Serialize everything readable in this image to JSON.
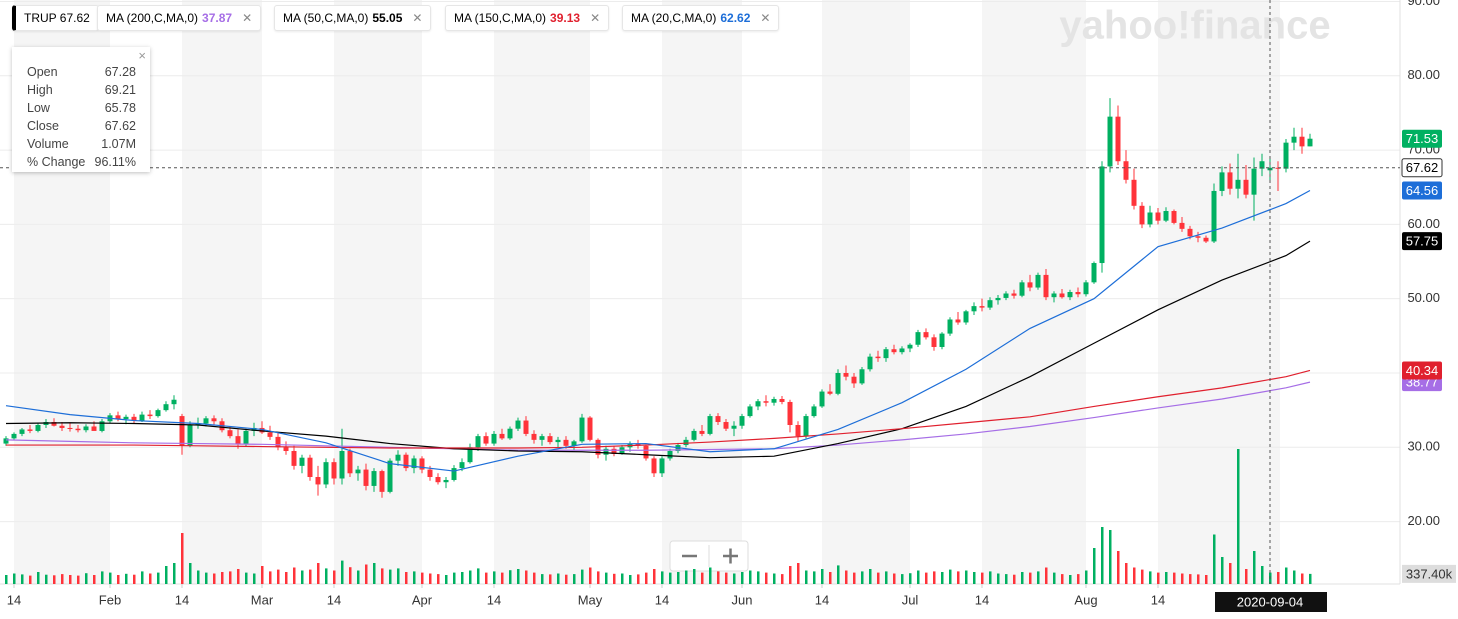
{
  "chart_data": {
    "type": "candlestick",
    "watermark": "yahoo!finance",
    "symbol": "TRUP",
    "symbol_value": 67.62,
    "up_color": "#00b061",
    "down_color": "#ff333a",
    "tooltip": [
      {
        "label": "Open",
        "value": "67.28"
      },
      {
        "label": "High",
        "value": "69.21"
      },
      {
        "label": "Low",
        "value": "65.78"
      },
      {
        "label": "Close",
        "value": "67.62"
      },
      {
        "label": "Volume",
        "value": "1.07M"
      },
      {
        "label": "% Change",
        "value": "96.11%"
      }
    ],
    "ylim": [
      11.6,
      90.2
    ],
    "yticks": [
      {
        "value": 20,
        "label": "20.00"
      },
      {
        "value": 30,
        "label": "30.00"
      },
      {
        "value": 40,
        "label": "40.00"
      },
      {
        "value": 50,
        "label": "50.00"
      },
      {
        "value": 60,
        "label": "60.00"
      },
      {
        "value": 70,
        "label": "70.00"
      },
      {
        "value": 80,
        "label": "80.00"
      },
      {
        "value": 90,
        "label": "90.00"
      }
    ],
    "xticks": [
      {
        "value": 1,
        "label": "14"
      },
      {
        "value": 13,
        "label": "Feb"
      },
      {
        "value": 22,
        "label": "14"
      },
      {
        "value": 32,
        "label": "Mar"
      },
      {
        "value": 41,
        "label": "14"
      },
      {
        "value": 52,
        "label": "Apr"
      },
      {
        "value": 61,
        "label": "14"
      },
      {
        "value": 73,
        "label": "May"
      },
      {
        "value": 82,
        "label": "14"
      },
      {
        "value": 92,
        "label": "Jun"
      },
      {
        "value": 102,
        "label": "14"
      },
      {
        "value": 113,
        "label": "Jul"
      },
      {
        "value": 122,
        "label": "14"
      },
      {
        "value": 135,
        "label": "Aug"
      },
      {
        "value": 144,
        "label": "14"
      }
    ],
    "crosshair": {
      "value": 158,
      "label": "2020-09-04"
    },
    "grid": true,
    "candles": [
      [
        30.5,
        31.5,
        30.2,
        31.2
      ],
      [
        31.2,
        32,
        31,
        31.8
      ],
      [
        31.8,
        32.6,
        31.5,
        32.4
      ],
      [
        32.4,
        33,
        31.9,
        32.2
      ],
      [
        32.2,
        33.2,
        32,
        33
      ],
      [
        33,
        33.8,
        32.6,
        33.4
      ],
      [
        33.4,
        33.9,
        32.8,
        32.9
      ],
      [
        32.9,
        33.4,
        32.2,
        32.6
      ],
      [
        32.6,
        33.2,
        32.1,
        32.5
      ],
      [
        32.5,
        33,
        32,
        32.3
      ],
      [
        32.3,
        33.1,
        32,
        32.8
      ],
      [
        32.8,
        33.5,
        32.5,
        32.2
      ],
      [
        32.2,
        33.8,
        32,
        33.5
      ],
      [
        33.5,
        34.6,
        33.2,
        34.3
      ],
      [
        34.3,
        34.8,
        33.5,
        33.8
      ],
      [
        33.8,
        34.4,
        33.1,
        34.1
      ],
      [
        34.1,
        34.5,
        33.2,
        33.6
      ],
      [
        33.6,
        34.8,
        33.4,
        34.4
      ],
      [
        34.4,
        35,
        33.8,
        34.2
      ],
      [
        34.2,
        35.2,
        34,
        35
      ],
      [
        35,
        36.2,
        34.8,
        35.8
      ],
      [
        35.8,
        37,
        35.1,
        36.4
      ],
      [
        34.2,
        34.5,
        29,
        30.2
      ],
      [
        30.2,
        33.5,
        30,
        33
      ],
      [
        33,
        34,
        32.5,
        33.2
      ],
      [
        33.2,
        34.2,
        32.8,
        33.9
      ],
      [
        33.9,
        34.3,
        33,
        33.5
      ],
      [
        33.5,
        33.9,
        32,
        32.3
      ],
      [
        32.3,
        32.8,
        31.2,
        31.5
      ],
      [
        31.5,
        32.4,
        29.8,
        30.5
      ],
      [
        30.5,
        32.5,
        30.1,
        32.2
      ],
      [
        32.2,
        33.3,
        31.5,
        32.6
      ],
      [
        32.6,
        33.5,
        31.8,
        32
      ],
      [
        32,
        32.9,
        31,
        31.4
      ],
      [
        31.4,
        32,
        29.6,
        30
      ],
      [
        30,
        30.8,
        29,
        29.5
      ],
      [
        29.5,
        30.2,
        27,
        27.5
      ],
      [
        27.5,
        29,
        26.5,
        28.6
      ],
      [
        28.6,
        29,
        25.5,
        26
      ],
      [
        26,
        27.5,
        23.5,
        25
      ],
      [
        25,
        28.5,
        24.5,
        28
      ],
      [
        28,
        28.5,
        25,
        25.8
      ],
      [
        25.8,
        32.5,
        25,
        29.5
      ],
      [
        29.5,
        29.8,
        26,
        26.5
      ],
      [
        26.5,
        27.5,
        25.5,
        27
      ],
      [
        27,
        27.8,
        24.2,
        24.8
      ],
      [
        24.8,
        27.2,
        24,
        26.8
      ],
      [
        26.8,
        27,
        23.2,
        24
      ],
      [
        24,
        28.5,
        23.8,
        28.2
      ],
      [
        28.2,
        29.6,
        27.5,
        29
      ],
      [
        29,
        29.3,
        26.8,
        27.2
      ],
      [
        27.2,
        28.9,
        26.5,
        28.5
      ],
      [
        28.5,
        28.8,
        26.5,
        27
      ],
      [
        27,
        27.5,
        25.5,
        26
      ],
      [
        26,
        26.5,
        25,
        25.3
      ],
      [
        25.3,
        26,
        24.5,
        25.6
      ],
      [
        25.6,
        27.6,
        25.4,
        27.2
      ],
      [
        27.2,
        28.5,
        26.8,
        28
      ],
      [
        28,
        30.5,
        27.8,
        30
      ],
      [
        30,
        31.8,
        29.5,
        31.5
      ],
      [
        31.5,
        32,
        30.2,
        30.5
      ],
      [
        30.5,
        32.2,
        30.2,
        31.8
      ],
      [
        31.8,
        32.5,
        31,
        31.2
      ],
      [
        31.2,
        32.8,
        31,
        32.5
      ],
      [
        32.5,
        34,
        32.2,
        33.6
      ],
      [
        33.6,
        34.2,
        31.5,
        31.8
      ],
      [
        31.8,
        32.3,
        30.5,
        31
      ],
      [
        31,
        31.8,
        30.2,
        31.5
      ],
      [
        31.5,
        31.9,
        30.4,
        30.7
      ],
      [
        30.7,
        31.4,
        30,
        31
      ],
      [
        31,
        31.5,
        29.8,
        30.2
      ],
      [
        30.2,
        31,
        29.6,
        30.8
      ],
      [
        30.8,
        34.5,
        30.6,
        34
      ],
      [
        34,
        34.2,
        30.8,
        31
      ],
      [
        31,
        31.2,
        28.5,
        29
      ],
      [
        29,
        30.2,
        28.2,
        29.8
      ],
      [
        29.8,
        30.2,
        28.8,
        29.1
      ],
      [
        29.1,
        30.3,
        29,
        30
      ],
      [
        30,
        30.8,
        29.4,
        30.5
      ],
      [
        30.5,
        31,
        29.8,
        30.2
      ],
      [
        30.2,
        30.4,
        28.2,
        28.5
      ],
      [
        28.5,
        28.8,
        26,
        26.5
      ],
      [
        26.5,
        28.8,
        26,
        28.5
      ],
      [
        28.5,
        29.8,
        28.2,
        29.5
      ],
      [
        29.5,
        30.6,
        29.2,
        30.3
      ],
      [
        30.3,
        31.4,
        30,
        31
      ],
      [
        31,
        32.5,
        30.8,
        32.2
      ],
      [
        32.2,
        33,
        31.5,
        31.8
      ],
      [
        31.8,
        34.5,
        31.6,
        34.2
      ],
      [
        34.2,
        34.6,
        33,
        33.4
      ],
      [
        33.4,
        33.8,
        32.2,
        32.5
      ],
      [
        32.5,
        33.5,
        31.5,
        32.9
      ],
      [
        32.9,
        34.5,
        32.5,
        34.2
      ],
      [
        34.2,
        35.8,
        34,
        35.5
      ],
      [
        35.5,
        36.5,
        35,
        36.2
      ],
      [
        36.2,
        37,
        35.5,
        36
      ],
      [
        36,
        36.8,
        35.6,
        36.5
      ],
      [
        36.5,
        36.9,
        35.8,
        36.1
      ],
      [
        36.1,
        36.4,
        32,
        33
      ],
      [
        33,
        33.5,
        30.8,
        31.5
      ],
      [
        31.5,
        34.5,
        31.2,
        34.2
      ],
      [
        34.2,
        35.8,
        34,
        35.5
      ],
      [
        35.5,
        37.8,
        35.3,
        37.5
      ],
      [
        37.5,
        38.5,
        37,
        37.2
      ],
      [
        37.2,
        40.5,
        37,
        40
      ],
      [
        40,
        41,
        39,
        39.5
      ],
      [
        39.5,
        40,
        38,
        38.6
      ],
      [
        38.6,
        40.8,
        38.4,
        40.5
      ],
      [
        40.5,
        42.6,
        40.2,
        42.2
      ],
      [
        42.2,
        43,
        41.5,
        42
      ],
      [
        42,
        43.5,
        41.5,
        43.2
      ],
      [
        43.2,
        43.8,
        42.5,
        42.8
      ],
      [
        42.8,
        43.6,
        42.5,
        43.3
      ],
      [
        43.3,
        44,
        42.8,
        43.8
      ],
      [
        43.8,
        45.8,
        43.5,
        45.5
      ],
      [
        45.5,
        46,
        44.5,
        44.8
      ],
      [
        44.8,
        45.2,
        43,
        43.5
      ],
      [
        43.5,
        45.5,
        43.2,
        45.3
      ],
      [
        45.3,
        47.5,
        45,
        47.2
      ],
      [
        47.2,
        48.2,
        46.5,
        46.8
      ],
      [
        46.8,
        48.5,
        46.5,
        48.3
      ],
      [
        48.3,
        49.5,
        47.8,
        49
      ],
      [
        49,
        50,
        48.3,
        48.8
      ],
      [
        48.8,
        50.2,
        48.5,
        49.8
      ],
      [
        49.8,
        50.5,
        49.2,
        50.1
      ],
      [
        50.1,
        51,
        49.8,
        50.7
      ],
      [
        50.7,
        51.2,
        50,
        50.4
      ],
      [
        50.4,
        52.5,
        50.2,
        52.2
      ],
      [
        52.2,
        53.2,
        51,
        51.5
      ],
      [
        51.5,
        53.5,
        51.2,
        53.2
      ],
      [
        53.2,
        54,
        49.8,
        50.2
      ],
      [
        50.2,
        51,
        49.5,
        50.7
      ],
      [
        50.7,
        51.3,
        50,
        50.2
      ],
      [
        50.2,
        51.2,
        49.8,
        50.9
      ],
      [
        50.9,
        51.5,
        50.2,
        50.6
      ],
      [
        50.6,
        52.5,
        50.3,
        52.2
      ],
      [
        52.2,
        55,
        52,
        54.8
      ],
      [
        54.8,
        68.5,
        53.5,
        67.8
      ],
      [
        67.8,
        77,
        67,
        74.5
      ],
      [
        74.5,
        76,
        68,
        68.5
      ],
      [
        68.5,
        70,
        65.5,
        66
      ],
      [
        66,
        67.5,
        62,
        62.5
      ],
      [
        62.5,
        63,
        59.5,
        60
      ],
      [
        60,
        62.5,
        59.6,
        61.6
      ],
      [
        61.6,
        62.2,
        60,
        60.5
      ],
      [
        60.5,
        62.3,
        60.3,
        61.8
      ],
      [
        61.8,
        62,
        60,
        60.2
      ],
      [
        60.2,
        61,
        59,
        59.4
      ],
      [
        59.4,
        59.8,
        58,
        58.4
      ],
      [
        58.4,
        59,
        57.6,
        58.2
      ],
      [
        58.2,
        58.5,
        57.5,
        57.7
      ],
      [
        57.7,
        65.5,
        57.5,
        64.5
      ],
      [
        64.5,
        67.8,
        63.8,
        67
      ],
      [
        67,
        68.2,
        64,
        64.8
      ],
      [
        64.8,
        69.5,
        63.5,
        66
      ],
      [
        66,
        68,
        63.5,
        64
      ],
      [
        64,
        69,
        60.5,
        67.5
      ],
      [
        67.5,
        69.5,
        66.5,
        68.5
      ],
      [
        67.28,
        69.21,
        65.78,
        67.62
      ],
      [
        67.62,
        68.5,
        64.5,
        67.5
      ],
      [
        67.5,
        71.5,
        67,
        71
      ],
      [
        71,
        73,
        70,
        71.8
      ],
      [
        71.8,
        73,
        69.5,
        70.5
      ],
      [
        70.5,
        72.2,
        70.5,
        71.53
      ]
    ],
    "volume_lim": [
      0,
      6000
    ],
    "volumes": [
      300,
      350,
      320,
      280,
      400,
      310,
      290,
      330,
      300,
      280,
      360,
      300,
      420,
      380,
      300,
      340,
      310,
      420,
      350,
      380,
      600,
      700,
      1700,
      700,
      450,
      380,
      350,
      400,
      420,
      500,
      380,
      350,
      600,
      420,
      480,
      400,
      550,
      450,
      480,
      700,
      520,
      450,
      780,
      560,
      450,
      650,
      700,
      520,
      480,
      520,
      400,
      420,
      380,
      350,
      330,
      300,
      380,
      400,
      450,
      520,
      380,
      420,
      380,
      460,
      500,
      450,
      380,
      330,
      320,
      350,
      310,
      330,
      480,
      550,
      420,
      380,
      340,
      350,
      300,
      320,
      380,
      500,
      420,
      380,
      400,
      450,
      500,
      380,
      550,
      420,
      380,
      350,
      400,
      450,
      420,
      380,
      350,
      330,
      600,
      700,
      450,
      420,
      500,
      400,
      620,
      450,
      380,
      420,
      500,
      380,
      420,
      350,
      330,
      360,
      450,
      380,
      420,
      400,
      480,
      420,
      450,
      400,
      380,
      420,
      350,
      330,
      310,
      400,
      380,
      420,
      550,
      380,
      330,
      300,
      330,
      450,
      1200,
      1900,
      1800,
      1100,
      700,
      550,
      480,
      420,
      380,
      400,
      380,
      350,
      330,
      320,
      300,
      1650,
      900,
      700,
      4500,
      500,
      1100,
      600,
      380,
      400,
      550,
      450,
      350,
      337.4
    ],
    "last_volume_label": "337.40k",
    "ma_x": [
      0,
      8,
      16,
      24,
      32,
      40,
      48,
      56,
      64,
      72,
      80,
      88,
      96,
      104,
      112,
      120,
      128,
      136,
      144,
      152,
      160,
      163
    ],
    "series": [
      {
        "name": "MA (200,C,MA,0)",
        "legend_value": 37.87,
        "color": "#a66ee6",
        "values": [
          31,
          30.8,
          30.6,
          30.5,
          30.4,
          30.2,
          30.0,
          29.8,
          29.6,
          29.6,
          29.6,
          29.7,
          29.8,
          30.3,
          31,
          31.8,
          32.8,
          34,
          35.3,
          36.5,
          38,
          38.77
        ]
      },
      {
        "name": "MA (50,C,MA,0)",
        "legend_value": 55.05,
        "color": "#000000",
        "values": [
          33.2,
          33.3,
          33.2,
          33,
          32.2,
          31.5,
          30.5,
          29.8,
          29.5,
          29.4,
          29,
          28.6,
          28.8,
          30.5,
          32.5,
          35.5,
          39.5,
          44,
          48.5,
          52.5,
          55.8,
          57.75
        ]
      },
      {
        "name": "MA (150,C,MA,0)",
        "legend_value": 39.13,
        "color": "#e0202e",
        "values": [
          30.3,
          30.3,
          30.3,
          30.2,
          30.1,
          30.0,
          29.9,
          29.9,
          29.9,
          30.0,
          30.3,
          30.7,
          31.2,
          31.8,
          32.5,
          33.3,
          34.1,
          35.5,
          36.8,
          38,
          39.5,
          40.34
        ]
      },
      {
        "name": "MA (20,C,MA,0)",
        "legend_value": 62.62,
        "color": "#1d6ed8",
        "values": [
          35.6,
          34.4,
          33.6,
          33.2,
          32.4,
          30.6,
          27.8,
          26.8,
          28.8,
          30.4,
          30.5,
          29.4,
          29.8,
          32.4,
          36,
          40.5,
          46,
          50,
          57,
          59.5,
          62.8,
          64.56
        ]
      }
    ]
  }
}
